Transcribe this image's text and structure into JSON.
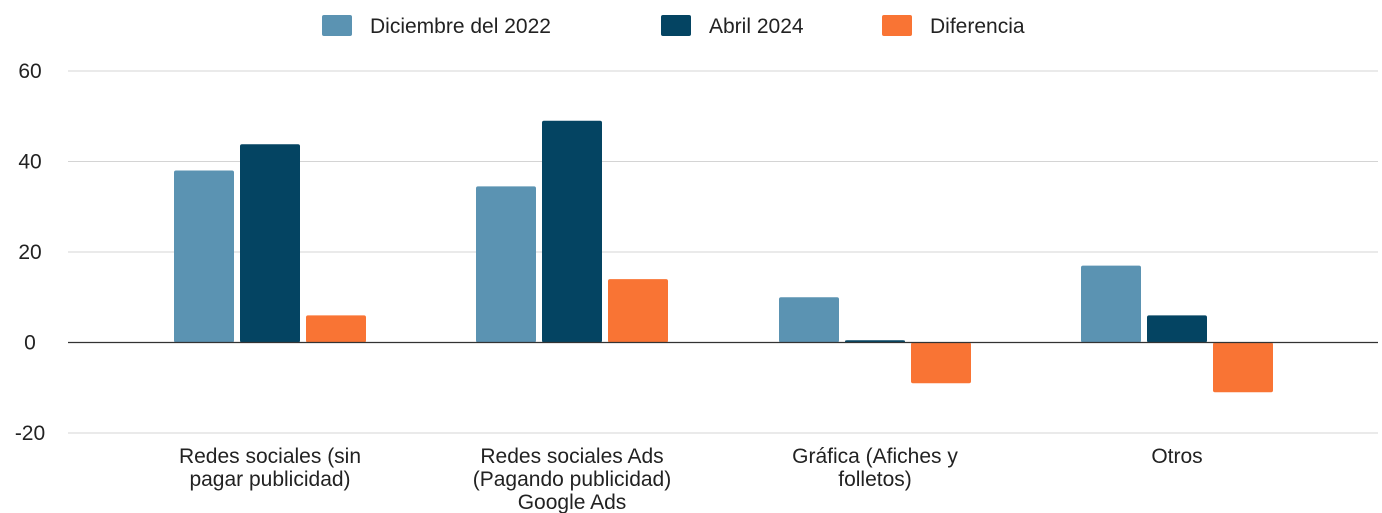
{
  "chart_data": {
    "type": "bar",
    "title": "",
    "xlabel": "",
    "ylabel": "",
    "categories": [
      [
        "Redes sociales (sin",
        "pagar publicidad)"
      ],
      [
        "Redes sociales Ads",
        "(Pagando publicidad)",
        "Google Ads"
      ],
      [
        "Gráfica (Afiches y",
        "folletos)"
      ],
      [
        "Otros"
      ]
    ],
    "series": [
      {
        "name": "Diciembre del 2022",
        "color": "#5b93b2",
        "values": [
          38,
          34.5,
          10,
          17
        ]
      },
      {
        "name": "Abril 2024",
        "color": "#044462",
        "values": [
          43.8,
          49,
          0.5,
          6
        ]
      },
      {
        "name": "Diferencia",
        "color": "#f97434",
        "values": [
          6,
          14,
          -9,
          -11
        ]
      }
    ],
    "ylim": [
      -20,
      60
    ],
    "yticks": [
      60,
      40,
      20,
      0,
      -20
    ],
    "grid": true,
    "legend_position": "top-center"
  }
}
